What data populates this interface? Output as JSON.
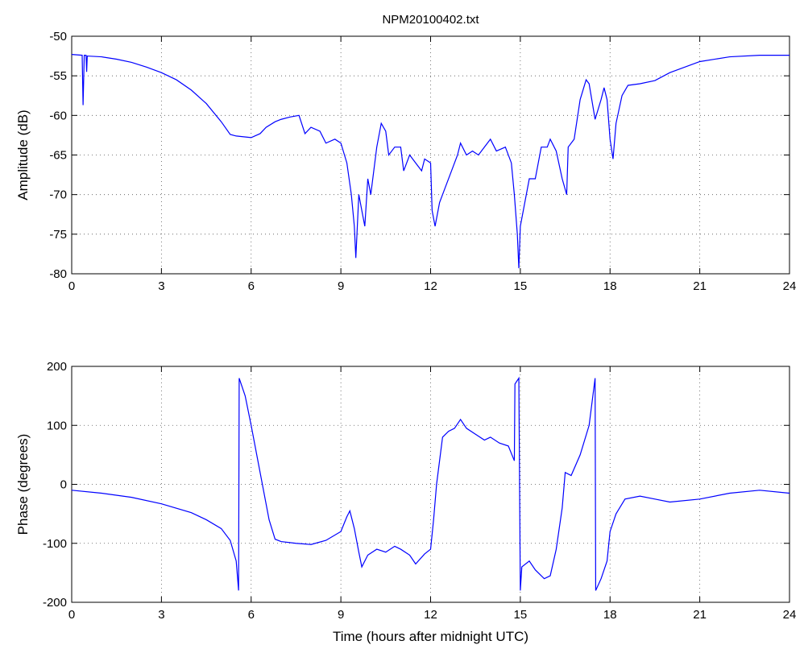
{
  "chart_data": [
    {
      "type": "line",
      "title": "NPM20100402.txt",
      "y_label": "Amplitude (dB)",
      "x": [
        0,
        0.35,
        0.38,
        0.42,
        0.48,
        0.5,
        0.52,
        1,
        1.5,
        2,
        2.5,
        3,
        3.5,
        4,
        4.5,
        5,
        5.3,
        5.5,
        6,
        6.3,
        6.5,
        6.8,
        7,
        7.3,
        7.6,
        7.8,
        8,
        8.3,
        8.5,
        8.8,
        9,
        9.2,
        9.35,
        9.45,
        9.5,
        9.6,
        9.7,
        9.8,
        9.9,
        10,
        10.1,
        10.2,
        10.35,
        10.5,
        10.6,
        10.8,
        11,
        11.1,
        11.3,
        11.5,
        11.7,
        11.8,
        12,
        12.05,
        12.15,
        12.3,
        12.5,
        12.7,
        12.9,
        13,
        13.2,
        13.4,
        13.6,
        13.8,
        14,
        14.2,
        14.5,
        14.7,
        14.8,
        14.9,
        14.95,
        15,
        15.1,
        15.3,
        15.5,
        15.7,
        15.9,
        16,
        16.2,
        16.4,
        16.55,
        16.6,
        16.8,
        17,
        17.2,
        17.3,
        17.5,
        17.7,
        17.8,
        17.9,
        18,
        18.1,
        18.2,
        18.4,
        18.6,
        19,
        19.5,
        20,
        21,
        22,
        23,
        24
      ],
      "values": [
        -52.3,
        -52.4,
        -58.7,
        -52.4,
        -52.4,
        -54.5,
        -52.5,
        -52.6,
        -52.9,
        -53.3,
        -53.9,
        -54.6,
        -55.5,
        -56.8,
        -58.5,
        -60.8,
        -62.4,
        -62.6,
        -62.8,
        -62.3,
        -61.5,
        -60.8,
        -60.5,
        -60.2,
        -60,
        -62.3,
        -61.5,
        -62,
        -63.5,
        -63,
        -63.5,
        -66,
        -70,
        -74,
        -78,
        -70,
        -72,
        -74,
        -68,
        -70,
        -67,
        -64,
        -61,
        -62,
        -65,
        -64,
        -64,
        -67,
        -65,
        -66,
        -67,
        -65.5,
        -66,
        -72,
        -74,
        -71,
        -69,
        -67,
        -65,
        -63.5,
        -65,
        -64.5,
        -65,
        -64,
        -63,
        -64.5,
        -64,
        -66,
        -70,
        -75,
        -79.3,
        -74,
        -72,
        -68,
        -68,
        -64,
        -64,
        -63,
        -64.5,
        -68,
        -70,
        -64,
        -63,
        -58,
        -55.5,
        -56,
        -60.5,
        -58,
        -56.5,
        -58,
        -63,
        -65.5,
        -61,
        -57.5,
        -56.2,
        -56,
        -55.6,
        -54.6,
        -53.2,
        -52.6,
        -52.4,
        -52.4
      ],
      "color": "#0000ff",
      "xlim": [
        0,
        24
      ],
      "xticks": [
        0,
        3,
        6,
        9,
        12,
        15,
        18,
        21,
        24
      ],
      "ylim": [
        -80,
        -50
      ],
      "yticks": [
        -80,
        -75,
        -70,
        -65,
        -60,
        -55,
        -50
      ],
      "grid": true
    },
    {
      "type": "line",
      "x_label": "Time (hours after midnight UTC)",
      "y_label": "Phase (degrees)",
      "x": [
        0,
        1,
        2,
        3,
        4,
        4.5,
        5,
        5.3,
        5.5,
        5.58,
        5.6,
        5.8,
        6,
        6.3,
        6.6,
        6.8,
        7,
        7.5,
        8,
        8.5,
        9,
        9.2,
        9.3,
        9.45,
        9.6,
        9.7,
        9.9,
        10.2,
        10.5,
        10.8,
        11,
        11.3,
        11.5,
        11.8,
        12,
        12.1,
        12.2,
        12.4,
        12.6,
        12.8,
        13,
        13.2,
        13.5,
        13.8,
        14,
        14.3,
        14.6,
        14.8,
        14.82,
        14.95,
        15,
        15.05,
        15.3,
        15.5,
        15.8,
        16,
        16.2,
        16.4,
        16.5,
        16.7,
        17,
        17.3,
        17.5,
        17.52,
        17.7,
        17.9,
        18,
        18.2,
        18.5,
        19,
        19.5,
        20,
        21,
        22,
        23,
        24
      ],
      "values": [
        -10,
        -15,
        -22,
        -33,
        -48,
        -60,
        -75,
        -95,
        -130,
        -180,
        180,
        150,
        100,
        20,
        -60,
        -93,
        -97,
        -100,
        -102,
        -95,
        -80,
        -55,
        -45,
        -75,
        -115,
        -140,
        -120,
        -110,
        -115,
        -105,
        -110,
        -120,
        -135,
        -118,
        -110,
        -60,
        0,
        80,
        90,
        95,
        110,
        95,
        85,
        75,
        80,
        70,
        65,
        40,
        170,
        180,
        -180,
        -140,
        -130,
        -145,
        -160,
        -155,
        -110,
        -40,
        20,
        15,
        50,
        100,
        180,
        -180,
        -160,
        -130,
        -80,
        -50,
        -25,
        -20,
        -25,
        -30,
        -25,
        -15,
        -10,
        -15
      ],
      "color": "#0000ff",
      "xlim": [
        0,
        24
      ],
      "xticks": [
        0,
        3,
        6,
        9,
        12,
        15,
        18,
        21,
        24
      ],
      "ylim": [
        -200,
        200
      ],
      "yticks": [
        -200,
        -100,
        0,
        100,
        200
      ],
      "grid": true
    }
  ]
}
